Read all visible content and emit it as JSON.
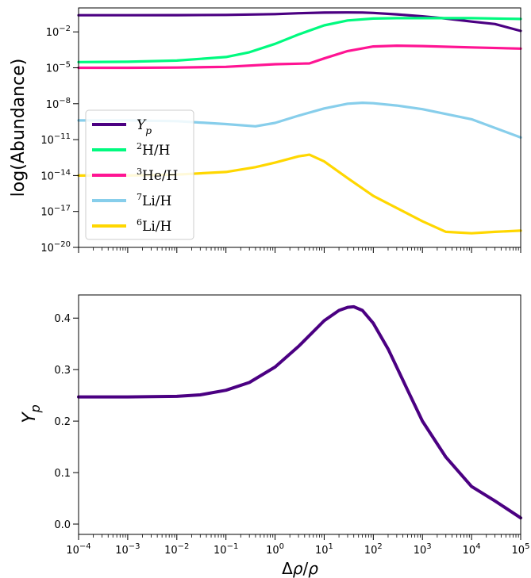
{
  "chart_data": [
    {
      "type": "line",
      "ylabel": "log(Abundance)",
      "xscale": "log",
      "yscale": "log",
      "xlim": [
        0.0001,
        100000
      ],
      "ylim": [
        1e-20,
        1
      ],
      "x_tick_labels": [
        "10^-4",
        "10^-3",
        "10^-2",
        "10^-1",
        "10^0",
        "10^1",
        "10^2",
        "10^3",
        "10^4",
        "10^5"
      ],
      "y_tick_labels": [
        "10^-20",
        "10^-17",
        "10^-14",
        "10^-11",
        "10^-8",
        "10^-5",
        "10^-2"
      ],
      "legend_position": "center-left",
      "grid": false,
      "series": [
        {
          "name": "Y_p",
          "color": "#4b0082",
          "x": [
            0.0001,
            0.001,
            0.01,
            0.1,
            1,
            3,
            10,
            30,
            60,
            100,
            300,
            1000,
            3000,
            10000,
            30000,
            100000
          ],
          "y": [
            0.247,
            0.247,
            0.249,
            0.262,
            0.305,
            0.36,
            0.405,
            0.42,
            0.41,
            0.38,
            0.29,
            0.2,
            0.13,
            0.073,
            0.045,
            0.012
          ]
        },
        {
          "name": "2H/H",
          "color": "#00fa7f",
          "x": [
            0.0001,
            0.001,
            0.01,
            0.1,
            0.3,
            1,
            3,
            10,
            30,
            100,
            300,
            1000,
            10000,
            100000
          ],
          "y": [
            3e-05,
            3.2e-05,
            4e-05,
            8e-05,
            0.0002,
            0.001,
            0.006,
            0.035,
            0.09,
            0.13,
            0.14,
            0.14,
            0.14,
            0.12
          ]
        },
        {
          "name": "3He/H",
          "color": "#ff1493",
          "x": [
            0.0001,
            0.001,
            0.01,
            0.1,
            1,
            5,
            10,
            30,
            100,
            300,
            1000,
            10000,
            100000
          ],
          "y": [
            1e-05,
            1e-05,
            1.05e-05,
            1.2e-05,
            2e-05,
            2.3e-05,
            6e-05,
            0.00025,
            0.0006,
            0.0007,
            0.00065,
            0.0005,
            0.0004
          ]
        },
        {
          "name": "7Li/H",
          "color": "#87ceeb",
          "x": [
            0.0001,
            0.001,
            0.01,
            0.1,
            0.4,
            1,
            3,
            10,
            30,
            60,
            100,
            300,
            1000,
            10000,
            100000
          ],
          "y": [
            4e-10,
            4e-10,
            3.5e-10,
            2e-10,
            1.3e-10,
            2.5e-10,
            1e-09,
            4e-09,
            1e-08,
            1.2e-08,
            1.1e-08,
            7e-09,
            3.5e-09,
            5e-10,
            1.5e-11
          ]
        },
        {
          "name": "6Li/H",
          "color": "#ffd700",
          "x": [
            0.0001,
            0.001,
            0.01,
            0.1,
            0.4,
            1,
            3,
            5,
            10,
            30,
            100,
            1000,
            3000,
            10000,
            30000,
            100000
          ],
          "y": [
            1e-14,
            1e-14,
            1.2e-14,
            2e-14,
            5e-14,
            1.2e-13,
            4e-13,
            5.5e-13,
            1.5e-13,
            6e-15,
            2e-16,
            1.5e-18,
            2e-19,
            1.5e-19,
            2e-19,
            2.5e-19
          ]
        }
      ]
    },
    {
      "type": "line",
      "xlabel": "Δρ/ρ",
      "ylabel": "Y_p",
      "xscale": "log",
      "xlim": [
        0.0001,
        100000
      ],
      "ylim": [
        -0.02,
        0.445
      ],
      "x_tick_labels": [
        "10^-4",
        "10^-3",
        "10^-2",
        "10^-1",
        "10^0",
        "10^1",
        "10^2",
        "10^3",
        "10^4",
        "10^5"
      ],
      "y_tick_labels": [
        "0.0",
        "0.1",
        "0.2",
        "0.3",
        "0.4"
      ],
      "grid": false,
      "series": [
        {
          "color": "#4b0082",
          "x": [
            0.0001,
            0.001,
            0.01,
            0.03,
            0.1,
            0.3,
            1,
            3,
            10,
            20,
            30,
            40,
            60,
            100,
            200,
            500,
            1000,
            3000,
            10000,
            30000,
            100000
          ],
          "y": [
            0.247,
            0.247,
            0.248,
            0.251,
            0.26,
            0.275,
            0.305,
            0.345,
            0.395,
            0.415,
            0.421,
            0.422,
            0.415,
            0.39,
            0.34,
            0.26,
            0.2,
            0.13,
            0.073,
            0.045,
            0.012
          ]
        }
      ]
    }
  ]
}
